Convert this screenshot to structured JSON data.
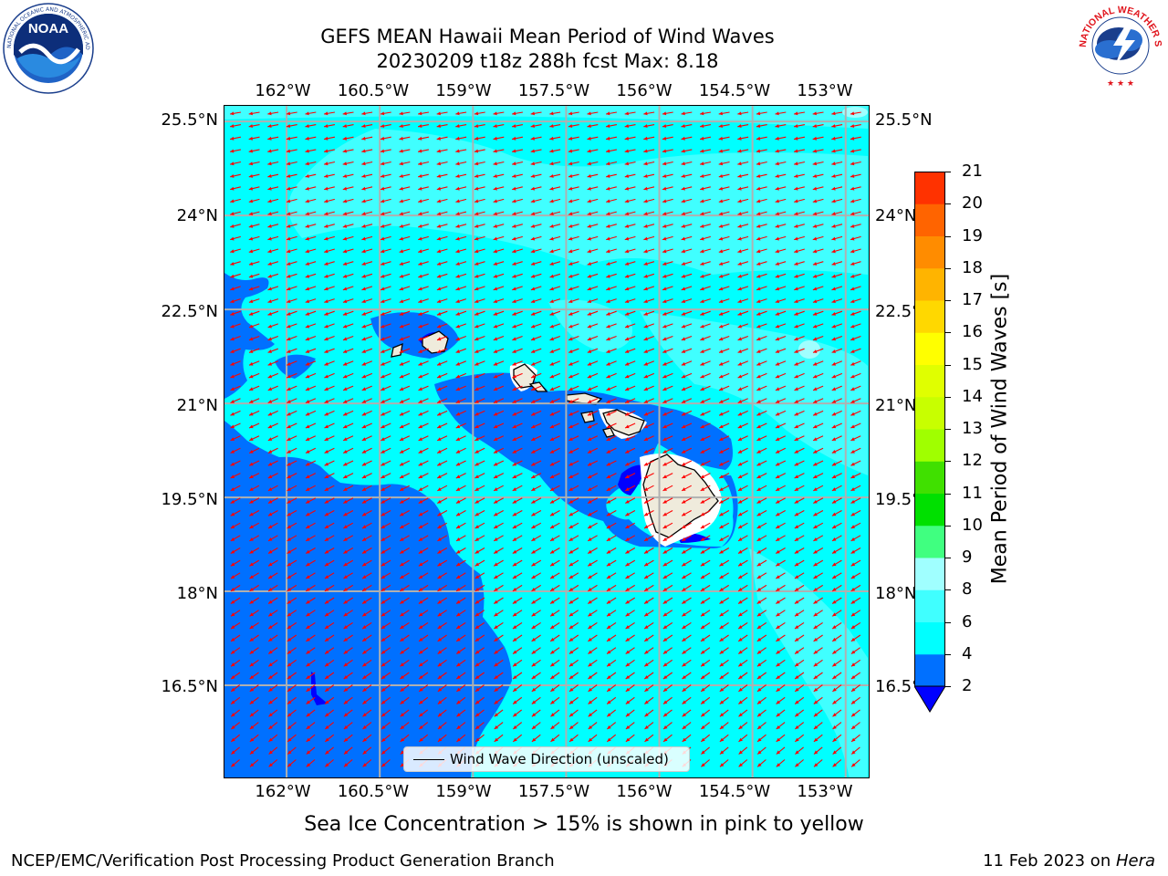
{
  "header": {
    "title_line1": "GEFS MEAN Hawaii Mean Period of Wind Waves",
    "title_line2": "20230209 t18z 288h fcst   Max: 8.18"
  },
  "logos": {
    "left": {
      "name": "noaa-logo",
      "text": "NOAA",
      "ring_text": "NATIONAL OCEANIC AND ATMOSPHERIC ADMINISTRATION · U.S. DEPARTMENT OF COMMERCE",
      "color": "#1a3e8c"
    },
    "right": {
      "name": "nws-logo",
      "ring_text": "NATIONAL WEATHER SERVICE",
      "color": "#e0141c"
    }
  },
  "map": {
    "lon_labels": [
      "162°W",
      "160.5°W",
      "159°W",
      "157.5°W",
      "156°W",
      "154.5°W",
      "153°W"
    ],
    "lat_labels": [
      "25.5°N",
      "24°N",
      "22.5°N",
      "21°N",
      "19.5°N",
      "18°N",
      "16.5°N"
    ],
    "lon_values": [
      -162,
      -160.5,
      -159,
      -157.5,
      -156,
      -154.5,
      -153
    ],
    "lat_values": [
      25.5,
      24,
      22.5,
      21,
      19.5,
      18,
      16.5
    ],
    "lon_range": [
      -163.0,
      -152.6
    ],
    "lat_range": [
      15.0,
      25.75
    ],
    "grid": true,
    "land_color": "#efebdc",
    "arrow_color": "#ff0000",
    "islands": [
      "Niihau",
      "Kauai",
      "Oahu",
      "Molokai",
      "Lanai",
      "Maui",
      "Kahoolawe",
      "Hawaii"
    ]
  },
  "legend": {
    "label": "Wind Wave Direction (unscaled)",
    "placement": "lower-center"
  },
  "colorbar": {
    "label": "Mean Period of Wind Waves [s]",
    "ticks": [
      "2",
      "4",
      "6",
      "8",
      "9",
      "10",
      "11",
      "12",
      "13",
      "14",
      "15",
      "16",
      "17",
      "18",
      "19",
      "20",
      "21"
    ],
    "colors": [
      "#0070ff",
      "#00ffff",
      "#40ffff",
      "#a0ffff",
      "#40ff80",
      "#00e000",
      "#40e000",
      "#a0ff00",
      "#c8ff00",
      "#e0ff00",
      "#ffff00",
      "#ffd800",
      "#ffb400",
      "#ff8c00",
      "#ff6400",
      "#ff3200",
      "#ff0000"
    ],
    "underflow_color": "#0000ff",
    "extend": "min"
  },
  "notes": {
    "ice": "Sea Ice Concentration > 15% is shown in pink to yellow"
  },
  "footer": {
    "left": "NCEP/EMC/Verification Post Processing Product Generation Branch",
    "right_date": "11 Feb 2023 on ",
    "right_host": "Hera"
  }
}
